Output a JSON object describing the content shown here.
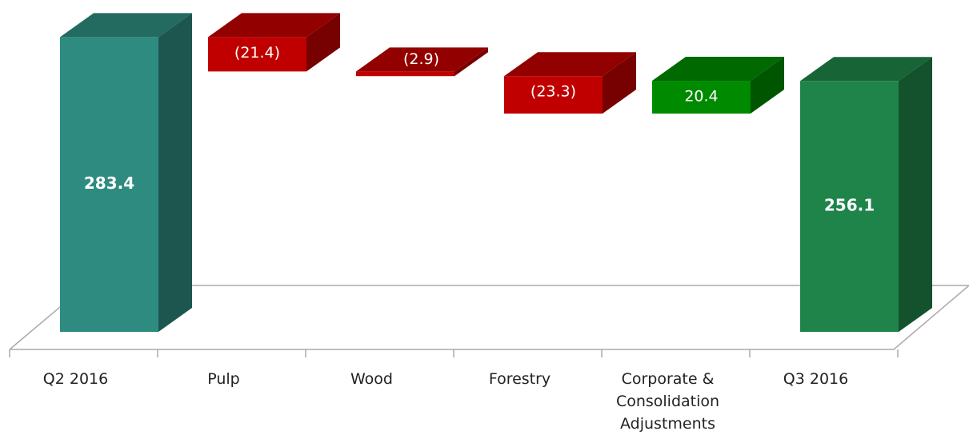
{
  "chart_data": {
    "type": "waterfall",
    "categories": [
      "Q2 2016",
      "Pulp",
      "Wood",
      "Forestry",
      "Corporate & Consolidation Adjustments",
      "Q3 2016"
    ],
    "values": [
      283.4,
      -21.4,
      -2.9,
      -23.3,
      20.4,
      256.1
    ],
    "value_labels": [
      "283.4",
      "(21.4)",
      "(2.9)",
      "(23.3)",
      "20.4",
      "256.1"
    ],
    "colors": [
      "#2e8b7f",
      "#c00000",
      "#c00000",
      "#c00000",
      "#008a00",
      "#1e8449"
    ],
    "ylim": [
      100,
      300
    ]
  }
}
